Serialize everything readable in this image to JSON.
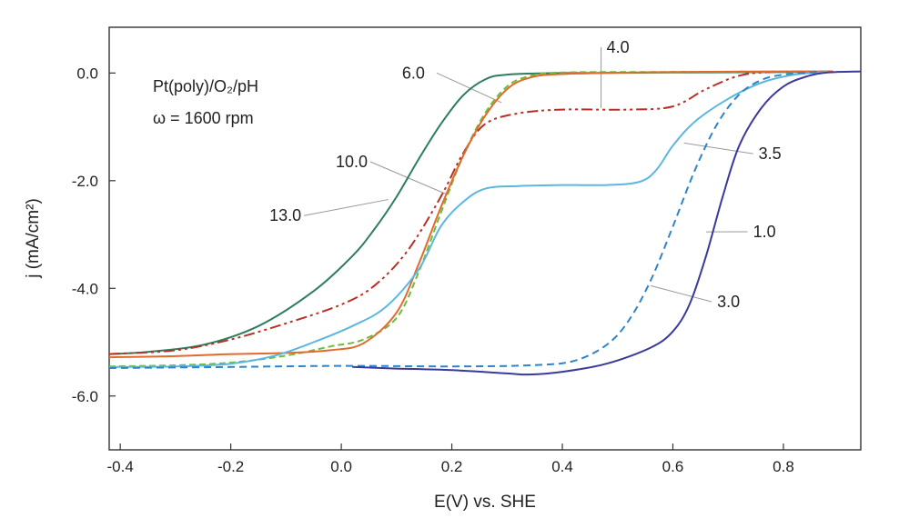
{
  "chart_data": {
    "type": "line",
    "title": "",
    "xlabel": "E(V) vs. SHE",
    "ylabel": "j (mA/cm²)",
    "xlim": [
      -0.42,
      0.94
    ],
    "ylim": [
      -7.0,
      0.85
    ],
    "x_ticks": [
      -0.4,
      -0.2,
      0.0,
      0.2,
      0.4,
      0.6,
      0.8
    ],
    "x_tick_labels": [
      "-0.4",
      "-0.2",
      "0.0",
      "0.2",
      "0.4",
      "0.6",
      "0.8"
    ],
    "y_ticks": [
      0.0,
      -2.0,
      -4.0,
      -6.0
    ],
    "y_tick_labels": [
      "0.0",
      "-2.0",
      "-4.0",
      "-6.0"
    ],
    "grid": false,
    "annotations": {
      "line1": "Pt(poly)/O₂/pH",
      "line2": "ω = 1600 rpm"
    },
    "series": [
      {
        "name": "13.0",
        "color": "#2e7d5b",
        "dash": "solid",
        "label_pos": [
          -0.13,
          -2.75
        ],
        "leader_to": [
          0.085,
          -2.35
        ],
        "points": [
          [
            -0.42,
            -5.22
          ],
          [
            -0.35,
            -5.18
          ],
          [
            -0.25,
            -5.05
          ],
          [
            -0.15,
            -4.7
          ],
          [
            -0.05,
            -4.05
          ],
          [
            0.02,
            -3.4
          ],
          [
            0.06,
            -2.9
          ],
          [
            0.1,
            -2.3
          ],
          [
            0.14,
            -1.6
          ],
          [
            0.18,
            -0.95
          ],
          [
            0.22,
            -0.42
          ],
          [
            0.26,
            -0.12
          ],
          [
            0.3,
            -0.03
          ],
          [
            0.4,
            0.0
          ],
          [
            0.6,
            0.01
          ],
          [
            0.89,
            0.02
          ]
        ]
      },
      {
        "name": "10.0",
        "color": "#b83025",
        "dash": "12 4 3 4 3 4",
        "label_pos": [
          -0.01,
          -1.75
        ],
        "leader_to": [
          0.19,
          -2.25
        ],
        "points": [
          [
            -0.42,
            -5.22
          ],
          [
            -0.3,
            -5.15
          ],
          [
            -0.2,
            -4.95
          ],
          [
            -0.1,
            -4.65
          ],
          [
            0.0,
            -4.3
          ],
          [
            0.06,
            -3.95
          ],
          [
            0.12,
            -3.3
          ],
          [
            0.18,
            -2.3
          ],
          [
            0.22,
            -1.5
          ],
          [
            0.26,
            -0.95
          ],
          [
            0.32,
            -0.75
          ],
          [
            0.4,
            -0.68
          ],
          [
            0.52,
            -0.68
          ],
          [
            0.6,
            -0.62
          ],
          [
            0.66,
            -0.3
          ],
          [
            0.72,
            -0.05
          ],
          [
            0.78,
            0.02
          ],
          [
            0.89,
            0.03
          ]
        ]
      },
      {
        "name": "6.0",
        "color": "#6cbd3a",
        "dash": "7 4",
        "label_pos": [
          0.11,
          -0.1
        ],
        "leader_to": [
          0.29,
          -0.55
        ],
        "points": [
          [
            -0.42,
            -5.45
          ],
          [
            -0.3,
            -5.43
          ],
          [
            -0.2,
            -5.38
          ],
          [
            -0.1,
            -5.25
          ],
          [
            -0.02,
            -5.08
          ],
          [
            0.04,
            -4.95
          ],
          [
            0.1,
            -4.55
          ],
          [
            0.14,
            -3.7
          ],
          [
            0.18,
            -2.6
          ],
          [
            0.22,
            -1.55
          ],
          [
            0.26,
            -0.75
          ],
          [
            0.3,
            -0.25
          ],
          [
            0.34,
            -0.06
          ],
          [
            0.4,
            0.01
          ],
          [
            0.6,
            0.02
          ],
          [
            0.89,
            0.03
          ]
        ]
      },
      {
        "name": "4.0",
        "color": "#e26a2c",
        "dash": "solid",
        "label_pos": [
          0.48,
          0.38
        ],
        "leader_to": [
          0.47,
          -0.65
        ],
        "points": [
          [
            -0.42,
            -5.28
          ],
          [
            -0.3,
            -5.26
          ],
          [
            -0.2,
            -5.22
          ],
          [
            -0.1,
            -5.2
          ],
          [
            -0.02,
            -5.15
          ],
          [
            0.04,
            -5.02
          ],
          [
            0.1,
            -4.45
          ],
          [
            0.14,
            -3.55
          ],
          [
            0.18,
            -2.5
          ],
          [
            0.22,
            -1.55
          ],
          [
            0.26,
            -0.8
          ],
          [
            0.3,
            -0.3
          ],
          [
            0.34,
            -0.09
          ],
          [
            0.4,
            -0.02
          ],
          [
            0.6,
            0.02
          ],
          [
            0.89,
            0.03
          ]
        ]
      },
      {
        "name": "3.5",
        "color": "#5bb7e0",
        "dash": "solid",
        "label_pos": [
          0.755,
          -1.6
        ],
        "leader_to": [
          0.62,
          -1.3
        ],
        "points": [
          [
            -0.42,
            -5.46
          ],
          [
            -0.3,
            -5.45
          ],
          [
            -0.2,
            -5.4
          ],
          [
            -0.12,
            -5.25
          ],
          [
            -0.05,
            -5.0
          ],
          [
            0.02,
            -4.7
          ],
          [
            0.08,
            -4.35
          ],
          [
            0.14,
            -3.65
          ],
          [
            0.18,
            -2.85
          ],
          [
            0.22,
            -2.4
          ],
          [
            0.26,
            -2.15
          ],
          [
            0.32,
            -2.1
          ],
          [
            0.4,
            -2.08
          ],
          [
            0.48,
            -2.08
          ],
          [
            0.54,
            -2.02
          ],
          [
            0.57,
            -1.8
          ],
          [
            0.6,
            -1.35
          ],
          [
            0.64,
            -0.9
          ],
          [
            0.7,
            -0.48
          ],
          [
            0.76,
            -0.18
          ],
          [
            0.82,
            -0.03
          ],
          [
            0.88,
            0.02
          ]
        ]
      },
      {
        "name": "3.0",
        "color": "#2f84c9",
        "dash": "8 5",
        "label_pos": [
          0.68,
          -4.35
        ],
        "leader_to": [
          0.56,
          -3.95
        ],
        "points": [
          [
            -0.42,
            -5.48
          ],
          [
            -0.2,
            -5.46
          ],
          [
            0.0,
            -5.44
          ],
          [
            0.2,
            -5.45
          ],
          [
            0.34,
            -5.43
          ],
          [
            0.42,
            -5.35
          ],
          [
            0.48,
            -5.05
          ],
          [
            0.52,
            -4.6
          ],
          [
            0.56,
            -3.85
          ],
          [
            0.6,
            -2.85
          ],
          [
            0.64,
            -1.8
          ],
          [
            0.68,
            -0.95
          ],
          [
            0.72,
            -0.4
          ],
          [
            0.76,
            -0.13
          ],
          [
            0.8,
            -0.03
          ],
          [
            0.86,
            0.02
          ]
        ]
      },
      {
        "name": "1.0",
        "color": "#3a3a9a",
        "dash": "solid",
        "label_pos": [
          0.745,
          -3.05
        ],
        "leader_to": [
          0.66,
          -2.95
        ],
        "points": [
          [
            0.02,
            -5.46
          ],
          [
            0.1,
            -5.49
          ],
          [
            0.2,
            -5.52
          ],
          [
            0.3,
            -5.58
          ],
          [
            0.34,
            -5.6
          ],
          [
            0.4,
            -5.55
          ],
          [
            0.48,
            -5.4
          ],
          [
            0.56,
            -5.1
          ],
          [
            0.6,
            -4.8
          ],
          [
            0.63,
            -4.3
          ],
          [
            0.66,
            -3.4
          ],
          [
            0.69,
            -2.3
          ],
          [
            0.72,
            -1.35
          ],
          [
            0.76,
            -0.65
          ],
          [
            0.8,
            -0.25
          ],
          [
            0.84,
            -0.07
          ],
          [
            0.88,
            0.01
          ],
          [
            0.94,
            0.03
          ]
        ]
      }
    ]
  }
}
